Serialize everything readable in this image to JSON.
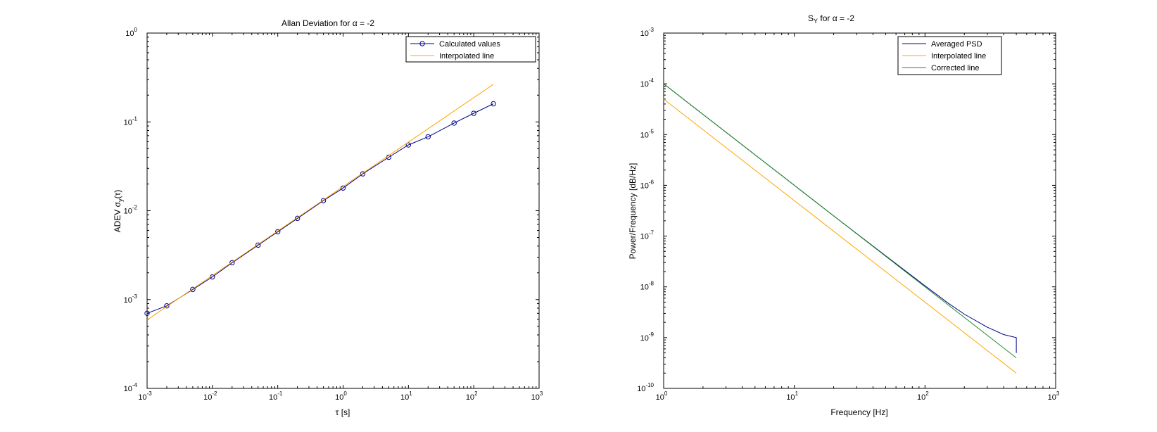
{
  "chart_data": [
    {
      "type": "line",
      "title": "Allan Deviation for α = -2",
      "xlabel": "τ [s]",
      "ylabel": "ADEV σy(τ)",
      "xscale": "log",
      "yscale": "log",
      "xlim": [
        0.001,
        1000
      ],
      "ylim": [
        0.0001,
        1
      ],
      "x_ticks": [
        {
          "base": "10",
          "exp": "-3",
          "value": 0.001
        },
        {
          "base": "10",
          "exp": "-2",
          "value": 0.01
        },
        {
          "base": "10",
          "exp": "-1",
          "value": 0.1
        },
        {
          "base": "10",
          "exp": "0",
          "value": 1
        },
        {
          "base": "10",
          "exp": "1",
          "value": 10
        },
        {
          "base": "10",
          "exp": "2",
          "value": 100
        },
        {
          "base": "10",
          "exp": "3",
          "value": 1000
        }
      ],
      "y_ticks": [
        {
          "base": "10",
          "exp": "-4",
          "value": 0.0001
        },
        {
          "base": "10",
          "exp": "-3",
          "value": 0.001
        },
        {
          "base": "10",
          "exp": "-2",
          "value": 0.01
        },
        {
          "base": "10",
          "exp": "-1",
          "value": 0.1
        },
        {
          "base": "10",
          "exp": "0",
          "value": 1
        }
      ],
      "grid": false,
      "legend_position": "top-right",
      "series": [
        {
          "name": "Calculated values",
          "color": "#00008b",
          "marker": "circle",
          "x": [
            0.001,
            0.002,
            0.005,
            0.01,
            0.02,
            0.05,
            0.1,
            0.2,
            0.5,
            1,
            2,
            5,
            10,
            20,
            50,
            100,
            200
          ],
          "y": [
            0.0007,
            0.00085,
            0.0013,
            0.0018,
            0.0026,
            0.0041,
            0.0058,
            0.0082,
            0.013,
            0.018,
            0.026,
            0.04,
            0.055,
            0.068,
            0.097,
            0.125,
            0.16
          ]
        },
        {
          "name": "Interpolated line",
          "color": "#ffa500",
          "marker": "none",
          "x": [
            0.001,
            200
          ],
          "y": [
            0.00059,
            0.265
          ]
        }
      ]
    },
    {
      "type": "line",
      "title": "SY for α = -2",
      "xlabel": "Frequency [Hz]",
      "ylabel": "Power/Frequency [dB/Hz]",
      "xscale": "log",
      "yscale": "log",
      "xlim": [
        1,
        1000
      ],
      "ylim": [
        1e-10,
        0.001
      ],
      "x_ticks": [
        {
          "base": "10",
          "exp": "0",
          "value": 1
        },
        {
          "base": "10",
          "exp": "1",
          "value": 10
        },
        {
          "base": "10",
          "exp": "2",
          "value": 100
        },
        {
          "base": "10",
          "exp": "3",
          "value": 1000
        }
      ],
      "y_ticks": [
        {
          "base": "10",
          "exp": "-10",
          "value": 1e-10
        },
        {
          "base": "10",
          "exp": "-9",
          "value": 1e-09
        },
        {
          "base": "10",
          "exp": "-8",
          "value": 1e-08
        },
        {
          "base": "10",
          "exp": "-7",
          "value": 1e-07
        },
        {
          "base": "10",
          "exp": "-6",
          "value": 1e-06
        },
        {
          "base": "10",
          "exp": "-5",
          "value": 1e-05
        },
        {
          "base": "10",
          "exp": "-4",
          "value": 0.0001
        },
        {
          "base": "10",
          "exp": "-3",
          "value": 0.001
        }
      ],
      "grid": false,
      "legend_position": "top-right",
      "series": [
        {
          "name": "Averaged PSD",
          "color": "#00008b",
          "marker": "none",
          "x": [
            1,
            2,
            5,
            10,
            20,
            50,
            100,
            150,
            200,
            300,
            400,
            500,
            500
          ],
          "y": [
            0.0001,
            2.5e-05,
            4e-06,
            1e-06,
            2.5e-07,
            4.1e-08,
            1.05e-08,
            4.8e-09,
            2.9e-09,
            1.6e-09,
            1.15e-09,
            1e-09,
            5e-10
          ]
        },
        {
          "name": "Interpolated line",
          "color": "#ffa500",
          "marker": "none",
          "x": [
            1,
            500
          ],
          "y": [
            5e-05,
            2e-10
          ]
        },
        {
          "name": "Corrected line",
          "color": "#228b22",
          "marker": "none",
          "x": [
            1,
            500
          ],
          "y": [
            0.0001,
            4e-10
          ]
        }
      ]
    }
  ]
}
